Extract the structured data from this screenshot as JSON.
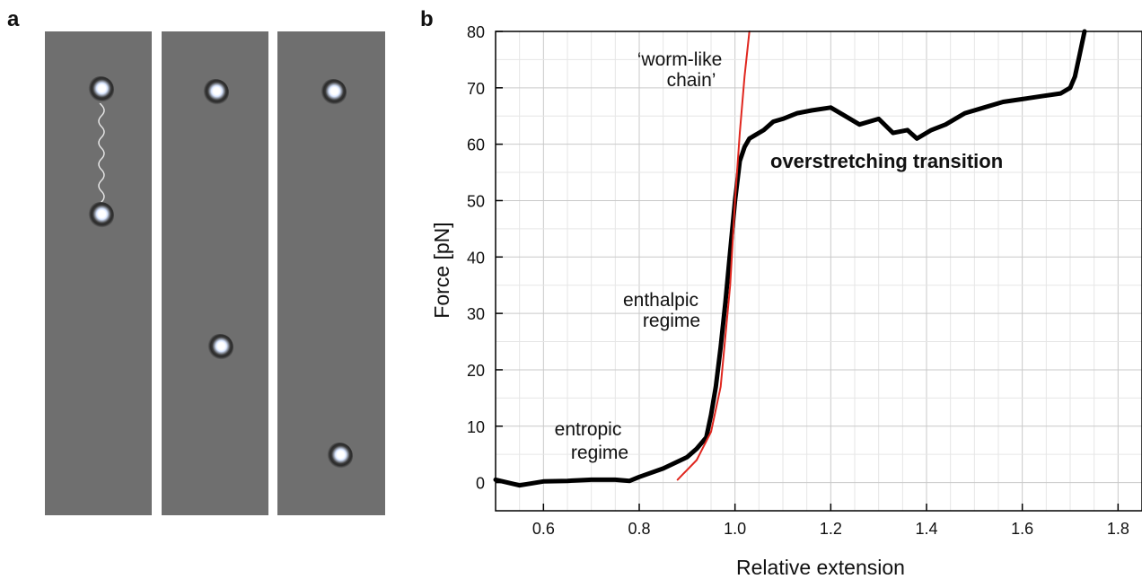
{
  "figure": {
    "panel_a_label": "a",
    "panel_b_label": "b"
  },
  "chart_data": {
    "type": "line",
    "title": "",
    "xlabel": "Relative extension",
    "ylabel": "Force [pN]",
    "xlim": [
      0.5,
      1.85
    ],
    "ylim": [
      -5,
      80
    ],
    "xticks": [
      0.6,
      0.8,
      1.0,
      1.2,
      1.4,
      1.6,
      1.8
    ],
    "xtick_labels": [
      "0.6",
      "0.8",
      "1.0",
      "1.2",
      "1.4",
      "1.6",
      "1.8"
    ],
    "yticks": [
      0,
      10,
      20,
      30,
      40,
      50,
      60,
      70,
      80
    ],
    "ytick_labels": [
      "0",
      "10",
      "20",
      "30",
      "40",
      "50",
      "60",
      "70",
      "80"
    ],
    "grid": true,
    "series": [
      {
        "color": "#000000",
        "x": [
          0.5,
          0.55,
          0.6,
          0.65,
          0.7,
          0.75,
          0.78,
          0.8,
          0.85,
          0.9,
          0.92,
          0.94,
          0.95,
          0.96,
          0.97,
          0.98,
          0.99,
          1.0,
          1.01,
          1.02,
          1.03,
          1.04,
          1.06,
          1.08,
          1.1,
          1.13,
          1.16,
          1.2,
          1.23,
          1.26,
          1.3,
          1.33,
          1.36,
          1.38,
          1.41,
          1.44,
          1.48,
          1.52,
          1.56,
          1.6,
          1.64,
          1.68,
          1.7,
          1.71,
          1.72,
          1.73
        ],
        "y": [
          0.5,
          -0.5,
          0.2,
          0.3,
          0.5,
          0.5,
          0.3,
          1.0,
          2.5,
          4.5,
          6.0,
          8.0,
          12.0,
          17.0,
          24.0,
          32.0,
          41.0,
          50.0,
          57.0,
          59.5,
          61.0,
          61.5,
          62.5,
          64.0,
          64.5,
          65.5,
          66.0,
          66.5,
          65.0,
          63.5,
          64.5,
          62.0,
          62.5,
          61.0,
          62.5,
          63.5,
          65.5,
          66.5,
          67.5,
          68.0,
          68.5,
          69.0,
          70.0,
          72.0,
          76.0,
          80.0
        ]
      },
      {
        "color": "#e0271f",
        "x": [
          0.88,
          0.92,
          0.95,
          0.97,
          0.99,
          1.0,
          1.01,
          1.02,
          1.03
        ],
        "y": [
          0.5,
          4.0,
          9.0,
          17.0,
          35.0,
          50.0,
          62.0,
          72.0,
          80.0
        ]
      }
    ],
    "annotations": {
      "wlc_line1": "‘worm-like",
      "wlc_line2": "chain’",
      "enthalpic_line1": "enthalpic",
      "enthalpic_line2": "regime",
      "entropic_line1": "entropic",
      "entropic_line2": "regime",
      "overstretching": "overstretching transition"
    }
  }
}
